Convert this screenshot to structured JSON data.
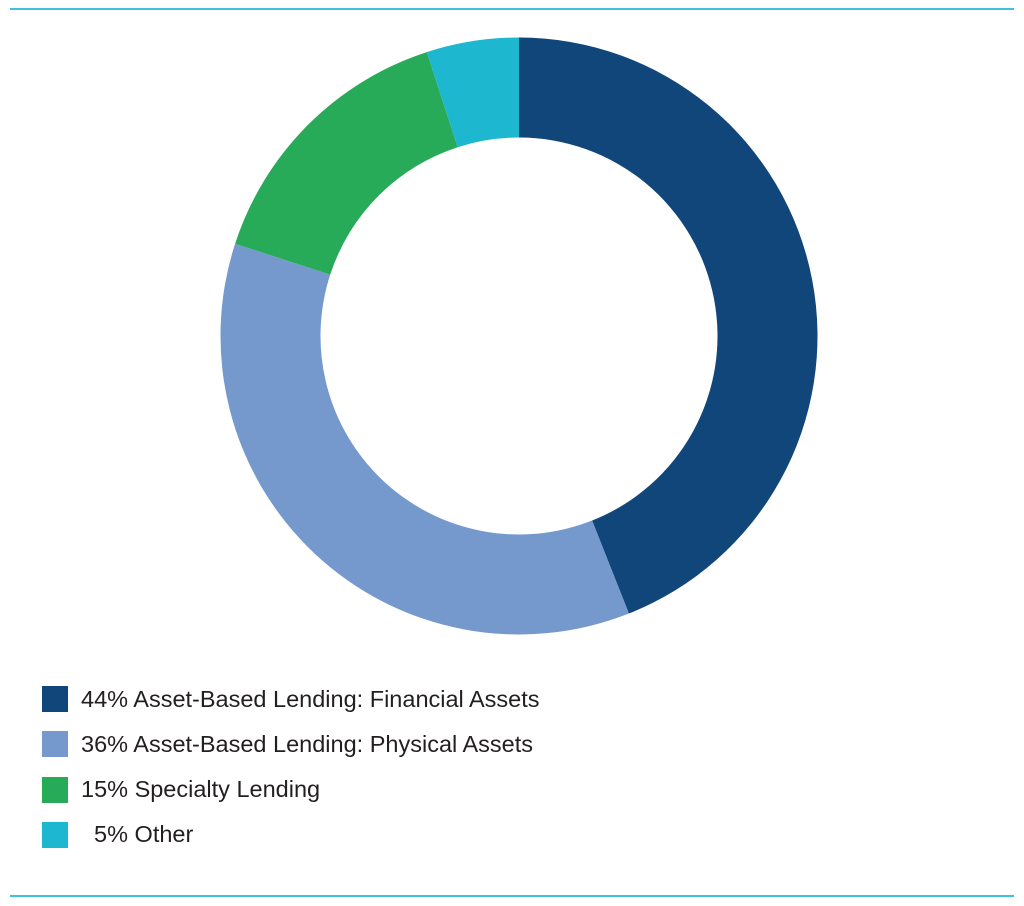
{
  "colors": {
    "rule": "#3dc1dc",
    "financial_assets": "#11467a",
    "physical_assets": "#7599cc",
    "specialty_lending": "#27ab58",
    "other": "#1db7cf"
  },
  "legend": {
    "items": [
      {
        "label": "44% Asset-Based Lending: Financial Assets",
        "color": "#11467a"
      },
      {
        "label": "36% Asset-Based Lending: Physical Assets",
        "color": "#7599cc"
      },
      {
        "label": "15% Specialty Lending",
        "color": "#27ab58"
      },
      {
        "label": "  5% Other",
        "color": "#1db7cf"
      }
    ]
  },
  "chart_data": {
    "type": "pie",
    "style": "donut",
    "title": "",
    "start": "12 o'clock",
    "direction": "clockwise",
    "legend_position": "bottom-left",
    "slices": [
      {
        "label": "Asset-Based Lending: Financial Assets",
        "value": 44,
        "unit": "%",
        "color": "#11467a"
      },
      {
        "label": "Asset-Based Lending: Physical Assets",
        "value": 36,
        "unit": "%",
        "color": "#7599cc"
      },
      {
        "label": "Specialty Lending",
        "value": 15,
        "unit": "%",
        "color": "#27ab58"
      },
      {
        "label": "Other",
        "value": 5,
        "unit": "%",
        "color": "#1db7cf"
      }
    ]
  }
}
